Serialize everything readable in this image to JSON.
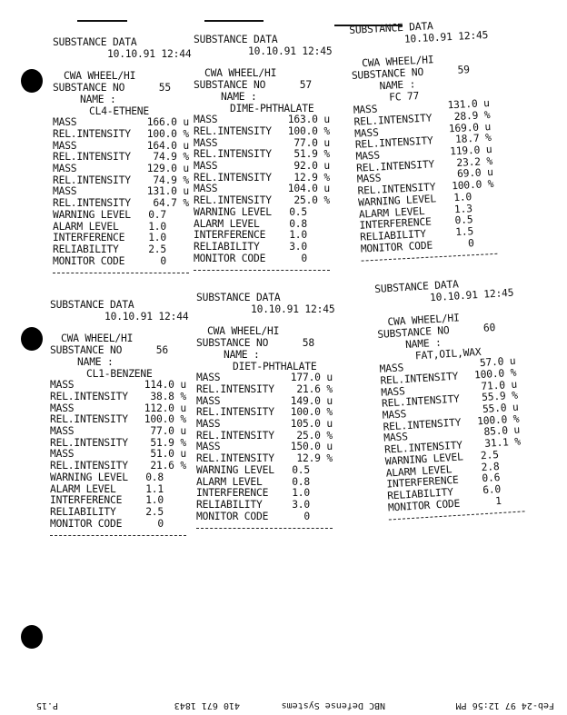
{
  "printouts": [
    {
      "title": "SUBSTANCE DATA",
      "datetime": "10.10.91 12:44",
      "mode": "CWA WHEEL/HI",
      "substance_no_label": "SUBSTANCE NO",
      "substance_no": "55",
      "name_label": "NAME :",
      "name": "CL4-ETHENE",
      "peaks": [
        {
          "mass": "166.0",
          "intensity": "100.0"
        },
        {
          "mass": "164.0",
          "intensity": "74.9"
        },
        {
          "mass": "129.0",
          "intensity": "74.9"
        },
        {
          "mass": "131.0",
          "intensity": "64.7"
        }
      ],
      "warning_level": "0.7",
      "alarm_level": "1.0",
      "interference": "1.0",
      "reliability": "2.5",
      "monitor_code": "0"
    },
    {
      "title": "SUBSTANCE DATA",
      "datetime": "10.10.91 12:45",
      "mode": "CWA WHEEL/HI",
      "substance_no_label": "SUBSTANCE NO",
      "substance_no": "57",
      "name_label": "NAME :",
      "name": "DIME-PHTHALATE",
      "peaks": [
        {
          "mass": "163.0",
          "intensity": "100.0"
        },
        {
          "mass": "77.0",
          "intensity": "51.9"
        },
        {
          "mass": "92.0",
          "intensity": "12.9"
        },
        {
          "mass": "104.0",
          "intensity": "25.0"
        }
      ],
      "warning_level": "0.5",
      "alarm_level": "0.8",
      "interference": "1.0",
      "reliability": "3.0",
      "monitor_code": "0"
    },
    {
      "title": "SUBSTANCE DATA",
      "datetime": "10.10.91 12:45",
      "mode": "CWA WHEEL/HI",
      "substance_no_label": "SUBSTANCE NO",
      "substance_no": "59",
      "name_label": "NAME :",
      "name": "FC 77",
      "peaks": [
        {
          "mass": "131.0",
          "intensity": "28.9"
        },
        {
          "mass": "169.0",
          "intensity": "18.7"
        },
        {
          "mass": "119.0",
          "intensity": "23.2"
        },
        {
          "mass": "69.0",
          "intensity": "100.0"
        }
      ],
      "warning_level": "1.0",
      "alarm_level": "1.3",
      "interference": "0.5",
      "reliability": "1.5",
      "monitor_code": "0"
    },
    {
      "title": "SUBSTANCE DATA",
      "datetime": "10.10.91 12:44",
      "mode": "CWA WHEEL/HI",
      "substance_no_label": "SUBSTANCE NO",
      "substance_no": "56",
      "name_label": "NAME :",
      "name": "CL1-BENZENE",
      "peaks": [
        {
          "mass": "114.0",
          "intensity": "38.8"
        },
        {
          "mass": "112.0",
          "intensity": "100.0"
        },
        {
          "mass": "77.0",
          "intensity": "51.9"
        },
        {
          "mass": "51.0",
          "intensity": "21.6"
        }
      ],
      "warning_level": "0.8",
      "alarm_level": "1.1",
      "interference": "1.0",
      "reliability": "2.5",
      "monitor_code": "0"
    },
    {
      "title": "SUBSTANCE DATA",
      "datetime": "10.10.91 12:45",
      "mode": "CWA WHEEL/HI",
      "substance_no_label": "SUBSTANCE NO",
      "substance_no": "58",
      "name_label": "NAME :",
      "name": "DIET-PHTHALATE",
      "peaks": [
        {
          "mass": "177.0",
          "intensity": "21.6"
        },
        {
          "mass": "149.0",
          "intensity": "100.0"
        },
        {
          "mass": "105.0",
          "intensity": "25.0"
        },
        {
          "mass": "150.0",
          "intensity": "12.9"
        }
      ],
      "warning_level": "0.5",
      "alarm_level": "0.8",
      "interference": "1.0",
      "reliability": "3.0",
      "monitor_code": "0"
    },
    {
      "title": "SUBSTANCE DATA",
      "datetime": "10.10.91 12:45",
      "mode": "CWA WHEEL/HI",
      "substance_no_label": "SUBSTANCE NO",
      "substance_no": "60",
      "name_label": "NAME :",
      "name": "FAT,OIL,WAX",
      "peaks": [
        {
          "mass": "57.0",
          "intensity": "100.0"
        },
        {
          "mass": "71.0",
          "intensity": "55.9"
        },
        {
          "mass": "55.0",
          "intensity": "100.0"
        },
        {
          "mass": "85.0",
          "intensity": "31.1"
        }
      ],
      "warning_level": "2.5",
      "alarm_level": "2.8",
      "interference": "0.6",
      "reliability": "6.0",
      "monitor_code": "1"
    }
  ],
  "labels": {
    "mass": "MASS",
    "rel_intensity": "REL.INTENSITY",
    "mass_unit": "u",
    "intensity_unit": "%",
    "warning_level": "WARNING LEVEL",
    "alarm_level": "ALARM LEVEL",
    "interference": "INTERFERENCE",
    "reliability": "RELIABILITY",
    "monitor_code": "MONITOR CODE"
  },
  "fax_header": {
    "date": "Feb-24 97 12:56 PM",
    "sender": "NBC Defense Systems",
    "phone": "410 671 1843",
    "page": "P.15"
  }
}
